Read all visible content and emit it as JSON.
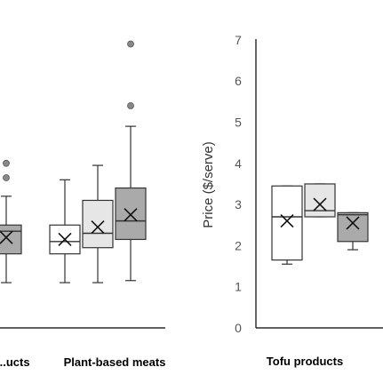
{
  "chart_data": [
    {
      "type": "box",
      "panel": "left",
      "title": "",
      "ylabel": "",
      "categories": [
        "...ucts",
        "Plant-based meats"
      ],
      "boxes": [
        {
          "category": "...ucts",
          "color": "#aaaaaa",
          "min": 1.1,
          "q1": 1.8,
          "median": 2.35,
          "q3": 2.5,
          "max": 3.2,
          "mean": 2.2,
          "outliers": [
            3.65,
            4.0
          ]
        },
        {
          "category": "Plant-based meats",
          "color": "#ffffff",
          "min": 1.1,
          "q1": 1.8,
          "median": 2.1,
          "q3": 2.5,
          "max": 3.6,
          "mean": 2.15
        },
        {
          "category": "Plant-based meats",
          "color": "#e6e6e6",
          "min": 1.1,
          "q1": 1.95,
          "median": 2.3,
          "q3": 3.1,
          "max": 3.95,
          "mean": 2.45
        },
        {
          "category": "Plant-based meats",
          "color": "#aaaaaa",
          "min": 1.15,
          "q1": 2.15,
          "median": 2.6,
          "q3": 3.4,
          "max": 4.9,
          "mean": 2.75,
          "outliers": [
            5.4,
            6.9
          ]
        }
      ]
    },
    {
      "type": "box",
      "panel": "right",
      "title": "",
      "ylabel": "Price ($/serve)",
      "ylim": [
        0,
        7
      ],
      "yticks": [
        "0",
        "1",
        "2",
        "3",
        "4",
        "5",
        "6",
        "7"
      ],
      "categories": [
        "Tofu products"
      ],
      "boxes": [
        {
          "category": "Tofu products",
          "color": "#ffffff",
          "min": 1.55,
          "q1": 1.65,
          "median": 2.7,
          "q3": 3.45,
          "max": 3.45,
          "mean": 2.6
        },
        {
          "category": "Tofu products",
          "color": "#e6e6e6",
          "min": 2.7,
          "q1": 2.7,
          "median": 2.85,
          "q3": 3.5,
          "max": 3.5,
          "mean": 3.0
        },
        {
          "category": "Tofu products",
          "color": "#aaaaaa",
          "min": 1.9,
          "q1": 2.1,
          "median": 2.75,
          "q3": 2.8,
          "max": 2.8,
          "mean": 2.55
        }
      ]
    }
  ]
}
